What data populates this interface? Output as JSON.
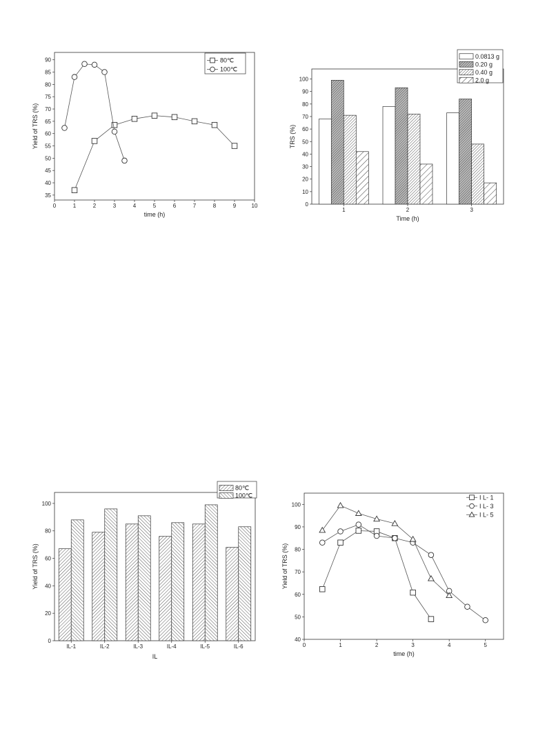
{
  "chart_data": [
    {
      "type": "line",
      "xlabel": "time (h)",
      "ylabel": "Yield of TRS (%)",
      "xlim": [
        0,
        10
      ],
      "ylim": [
        33,
        93
      ],
      "xticks": [
        0,
        1,
        2,
        3,
        4,
        5,
        6,
        7,
        8,
        9,
        10
      ],
      "yticks": [
        35,
        40,
        45,
        50,
        55,
        60,
        65,
        70,
        75,
        80,
        85,
        90
      ],
      "legend": "top-right",
      "series": [
        {
          "name": "80℃",
          "marker": "square",
          "x": [
            1,
            2,
            3,
            4,
            5,
            6,
            7,
            8,
            9
          ],
          "y": [
            37,
            57,
            63.5,
            66,
            67.3,
            66.7,
            65,
            63.5,
            55
          ]
        },
        {
          "name": "100℃",
          "marker": "circle",
          "x": [
            0.5,
            1,
            1.5,
            2,
            2.5,
            3,
            3.5
          ],
          "y": [
            62.3,
            83,
            88.3,
            88,
            85,
            60.8,
            49
          ]
        }
      ]
    },
    {
      "type": "bar",
      "xlabel": "Time (h)",
      "ylabel": "TRS (%)",
      "categories": [
        "1",
        "2",
        "3"
      ],
      "ylim": [
        0,
        108
      ],
      "yticks": [
        0,
        10,
        20,
        30,
        40,
        50,
        60,
        70,
        80,
        90,
        100
      ],
      "legend": "top-right",
      "series": [
        {
          "name": "0.0813 g",
          "pattern": "white",
          "values": [
            68,
            78,
            73
          ]
        },
        {
          "name": "0.20 g",
          "pattern": "dense",
          "values": [
            99,
            93,
            84
          ]
        },
        {
          "name": "0.40 g",
          "pattern": "hatch",
          "values": [
            71,
            72,
            48
          ]
        },
        {
          "name": "2.0 g",
          "pattern": "sparse",
          "values": [
            42,
            32,
            17
          ]
        }
      ]
    },
    {
      "type": "bar",
      "xlabel": "IL",
      "ylabel": "Yield of TRS (%)",
      "categories": [
        "IL-1",
        "IL-2",
        "IL-3",
        "IL-4",
        "IL-5",
        "IL-6"
      ],
      "ylim": [
        0,
        108
      ],
      "yticks": [
        0,
        20,
        40,
        60,
        80,
        100
      ],
      "legend": "top-right",
      "series": [
        {
          "name": "80℃",
          "pattern": "fwd",
          "values": [
            67,
            79,
            85,
            76,
            85,
            68
          ]
        },
        {
          "name": "100℃",
          "pattern": "back",
          "values": [
            88,
            96,
            91,
            86,
            99,
            83
          ]
        }
      ]
    },
    {
      "type": "line",
      "xlabel": "time (h)",
      "ylabel": "Yield of TRS (%)",
      "xlim": [
        0,
        5.5
      ],
      "ylim": [
        40,
        105
      ],
      "xticks": [
        0,
        1,
        2,
        3,
        4,
        5
      ],
      "yticks": [
        40,
        50,
        60,
        70,
        80,
        90,
        100
      ],
      "legend": "top-right",
      "series": [
        {
          "name": "I L- 1",
          "marker": "square",
          "x": [
            0.5,
            1,
            1.5,
            2,
            2.5,
            3,
            3.5
          ],
          "y": [
            62.3,
            83,
            88.3,
            88,
            85,
            60.8,
            49
          ]
        },
        {
          "name": "I L- 3",
          "marker": "circle",
          "x": [
            0.5,
            1,
            1.5,
            2,
            2.5,
            3,
            3.5,
            4,
            4.5,
            5
          ],
          "y": [
            83,
            88,
            91,
            86,
            85,
            83,
            77.5,
            61.5,
            54.5,
            48.5
          ]
        },
        {
          "name": "I L- 5",
          "marker": "triangle",
          "x": [
            0.5,
            1,
            1.5,
            2,
            2.5,
            3,
            3.5,
            4
          ],
          "y": [
            88.5,
            99.5,
            96,
            93.5,
            91.5,
            84.5,
            67,
            59.5
          ]
        }
      ]
    }
  ]
}
